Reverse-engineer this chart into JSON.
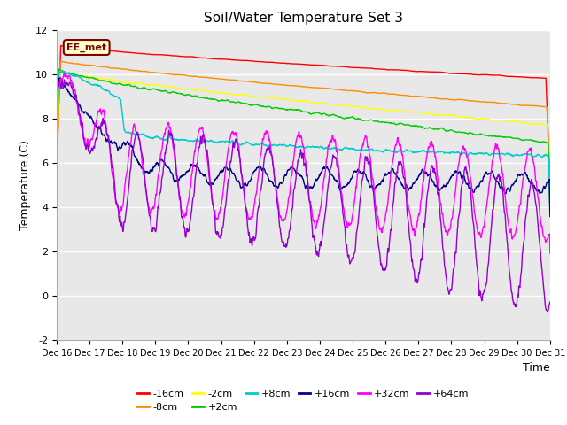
{
  "title": "Soil/Water Temperature Set 3",
  "xlabel": "Time",
  "ylabel": "Temperature (C)",
  "ylim": [
    -2,
    12
  ],
  "xlim": [
    0,
    15
  ],
  "background_color": "#ffffff",
  "plot_bg_color": "#e8e8e8",
  "annotation_text": "EE_met",
  "annotation_bg": "#ffffcc",
  "annotation_border": "#800000",
  "series": [
    {
      "label": "-16cm",
      "color": "#ff0000"
    },
    {
      "label": "-8cm",
      "color": "#ff8c00"
    },
    {
      "label": "-2cm",
      "color": "#ffff00"
    },
    {
      "label": "+2cm",
      "color": "#00cc00"
    },
    {
      "label": "+8cm",
      "color": "#00cccc"
    },
    {
      "label": "+16cm",
      "color": "#00008b"
    },
    {
      "label": "+32cm",
      "color": "#ff00ff"
    },
    {
      "label": "+64cm",
      "color": "#9400d3"
    }
  ],
  "xtick_labels": [
    "Dec 16",
    "Dec 17",
    "Dec 18",
    "Dec 19",
    "Dec 20",
    "Dec 21",
    "Dec 22",
    "Dec 23",
    "Dec 24",
    "Dec 25",
    "Dec 26",
    "Dec 27",
    "Dec 28",
    "Dec 29",
    "Dec 30",
    "Dec 31"
  ],
  "ytick_labels": [
    "-2",
    "0",
    "2",
    "4",
    "6",
    "8",
    "10",
    "12"
  ],
  "ytick_values": [
    -2,
    0,
    2,
    4,
    6,
    8,
    10,
    12
  ],
  "n_points": 1440,
  "days": 15
}
